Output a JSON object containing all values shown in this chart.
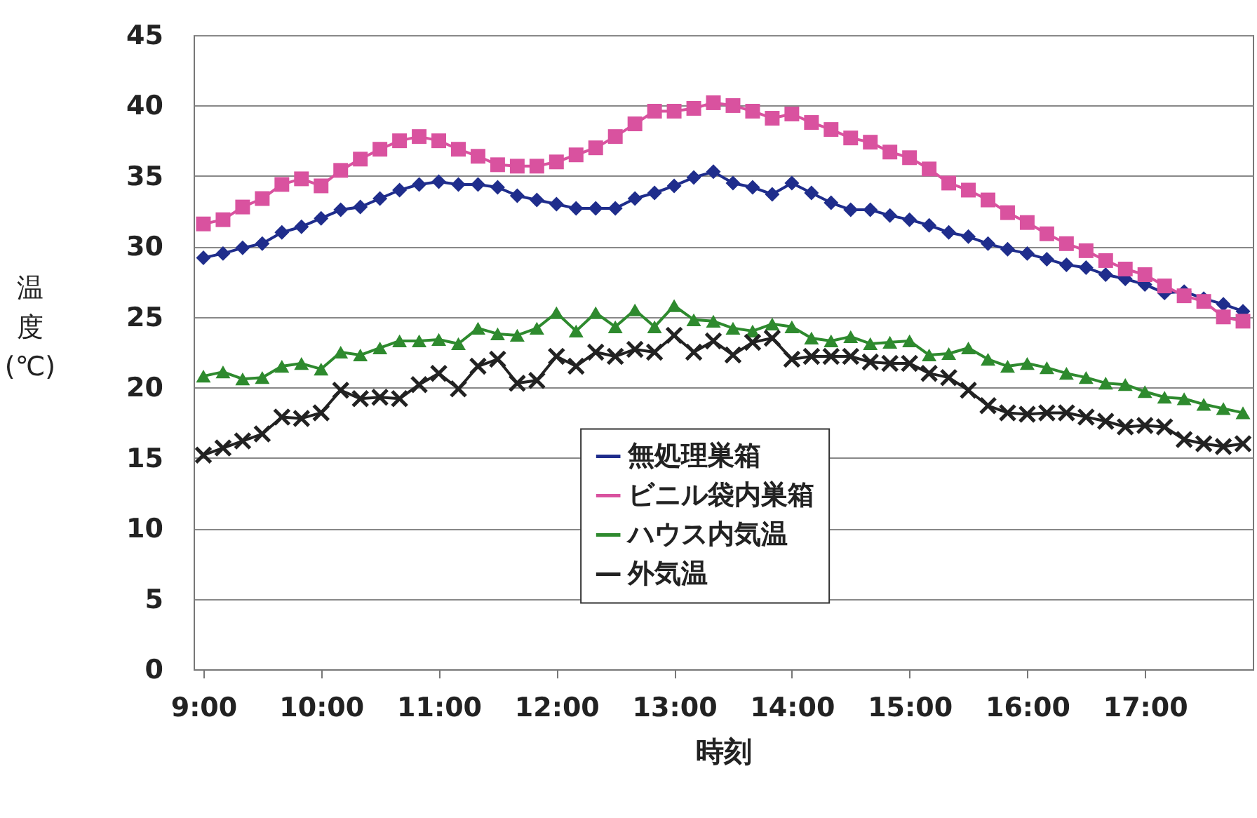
{
  "chart_data": {
    "type": "line",
    "xlabel": "時刻",
    "ylabel": "温度(℃)",
    "x": [
      9,
      9.1667,
      9.3333,
      9.5,
      9.6667,
      9.8333,
      10,
      10.1667,
      10.3333,
      10.5,
      10.6667,
      10.8333,
      11,
      11.1667,
      11.3333,
      11.5,
      11.6667,
      11.8333,
      12,
      12.1667,
      12.3333,
      12.5,
      12.6667,
      12.8333,
      13,
      13.1667,
      13.3333,
      13.5,
      13.6667,
      13.8333,
      14,
      14.1667,
      14.3333,
      14.5,
      14.6667,
      14.8333,
      15,
      15.1667,
      15.3333,
      15.5,
      15.6667,
      15.8333,
      16,
      16.1667,
      16.3333,
      16.5,
      16.6667,
      16.8333,
      17,
      17.1667,
      17.3333,
      17.5,
      17.6667,
      17.8333
    ],
    "xlim": [
      8.9167,
      17.9167
    ],
    "xticks": [
      {
        "value": 9,
        "label": "9:00"
      },
      {
        "value": 10,
        "label": "10:00"
      },
      {
        "value": 11,
        "label": "11:00"
      },
      {
        "value": 12,
        "label": "12:00"
      },
      {
        "value": 13,
        "label": "13:00"
      },
      {
        "value": 14,
        "label": "14:00"
      },
      {
        "value": 15,
        "label": "15:00"
      },
      {
        "value": 16,
        "label": "16:00"
      },
      {
        "value": 17,
        "label": "17:00"
      }
    ],
    "ylim": [
      0,
      45
    ],
    "yticks": [
      0,
      5,
      10,
      15,
      20,
      25,
      30,
      35,
      40,
      45
    ],
    "grid": "y",
    "legend": "bottom",
    "series": [
      {
        "name": "無処理巣箱",
        "color": "#1f2d8c",
        "marker": "diamond",
        "values": [
          29.2,
          29.5,
          29.9,
          30.2,
          31.0,
          31.4,
          32.0,
          32.6,
          32.8,
          33.4,
          34.0,
          34.4,
          34.6,
          34.4,
          34.4,
          34.2,
          33.6,
          33.3,
          33.0,
          32.7,
          32.7,
          32.7,
          33.4,
          33.8,
          34.3,
          34.9,
          35.3,
          34.5,
          34.2,
          33.7,
          34.5,
          33.8,
          33.1,
          32.6,
          32.6,
          32.2,
          31.9,
          31.5,
          31.0,
          30.7,
          30.2,
          29.8,
          29.5,
          29.1,
          28.7,
          28.5,
          28.0,
          27.7,
          27.3,
          26.7,
          26.8,
          26.3,
          25.9,
          25.4
        ]
      },
      {
        "name": "ビニル袋内巣箱",
        "color": "#d9529f",
        "marker": "square",
        "values": [
          31.6,
          31.9,
          32.8,
          33.4,
          34.4,
          34.8,
          34.3,
          35.4,
          36.2,
          36.9,
          37.5,
          37.8,
          37.5,
          36.9,
          36.4,
          35.8,
          35.7,
          35.7,
          36.0,
          36.5,
          37.0,
          37.8,
          38.7,
          39.6,
          39.6,
          39.8,
          40.2,
          40.0,
          39.6,
          39.1,
          39.4,
          38.8,
          38.3,
          37.7,
          37.4,
          36.7,
          36.3,
          35.5,
          34.5,
          34.0,
          33.3,
          32.4,
          31.7,
          30.9,
          30.2,
          29.7,
          29.0,
          28.4,
          28.0,
          27.2,
          26.5,
          26.1,
          25.0,
          24.7
        ]
      },
      {
        "name": "ハウス内気温",
        "color": "#2e8a2e",
        "marker": "triangle",
        "values": [
          20.8,
          21.1,
          20.6,
          20.7,
          21.5,
          21.7,
          21.3,
          22.5,
          22.3,
          22.8,
          23.3,
          23.3,
          23.4,
          23.1,
          24.2,
          23.8,
          23.7,
          24.2,
          25.3,
          24.0,
          25.3,
          24.3,
          25.5,
          24.3,
          25.8,
          24.8,
          24.7,
          24.2,
          24.0,
          24.5,
          24.3,
          23.5,
          23.3,
          23.6,
          23.1,
          23.2,
          23.3,
          22.3,
          22.4,
          22.8,
          22.0,
          21.5,
          21.7,
          21.4,
          21.0,
          20.7,
          20.3,
          20.2,
          19.7,
          19.3,
          19.2,
          18.8,
          18.5,
          18.2
        ]
      },
      {
        "name": "外気温",
        "color": "#222222",
        "marker": "cross",
        "values": [
          15.2,
          15.7,
          16.2,
          16.7,
          17.9,
          17.8,
          18.2,
          19.8,
          19.2,
          19.3,
          19.2,
          20.2,
          21.0,
          19.9,
          21.5,
          22.0,
          20.3,
          20.5,
          22.2,
          21.5,
          22.5,
          22.2,
          22.7,
          22.5,
          23.7,
          22.5,
          23.3,
          22.3,
          23.2,
          23.5,
          22.0,
          22.2,
          22.2,
          22.2,
          21.8,
          21.7,
          21.7,
          21.0,
          20.7,
          19.8,
          18.7,
          18.2,
          18.1,
          18.2,
          18.2,
          17.9,
          17.6,
          17.2,
          17.3,
          17.2,
          16.3,
          16.0,
          15.8,
          16.0
        ]
      }
    ]
  }
}
